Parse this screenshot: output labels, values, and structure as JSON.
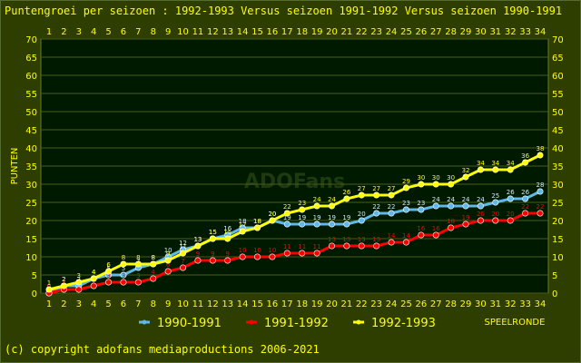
{
  "title": "Puntengroei per seizoen : 1992-1993 Versus seizoen 1991-1992 Versus seizoen 1990-1991",
  "copyright": "(c) copyright adofans mediaproductions 2006-2021",
  "watermark": "ADOFans",
  "colors": {
    "background": "#2e3d00",
    "plot_background": "#001a00",
    "grid": "#4a5a1a",
    "text": "#ffff00",
    "series_1990_1991": "#5fb8e8",
    "series_1991_1992": "#ff0000",
    "series_1992_1993": "#ffff00"
  },
  "chart_data": {
    "type": "line",
    "title": "Puntengroei per seizoen : 1992-1993 Versus seizoen 1991-1992 Versus seizoen 1990-1991",
    "ylabel": "PUNTEN",
    "xlabel": "SPEELRONDE",
    "x": [
      1,
      2,
      3,
      4,
      5,
      6,
      7,
      8,
      9,
      10,
      11,
      12,
      13,
      14,
      15,
      16,
      17,
      18,
      19,
      20,
      21,
      22,
      23,
      24,
      25,
      26,
      27,
      28,
      29,
      30,
      31,
      32,
      33,
      34
    ],
    "ylim": [
      0,
      70
    ],
    "yticks": [
      0,
      5,
      10,
      15,
      20,
      25,
      30,
      35,
      40,
      45,
      50,
      55,
      60,
      65,
      70
    ],
    "grid": true,
    "legend_position": "bottom",
    "series": [
      {
        "name": "1990-1991",
        "color": "#5fb8e8",
        "values": [
          0,
          2,
          2,
          4,
          5,
          5,
          7,
          8,
          10,
          12,
          13,
          15,
          16,
          18,
          18,
          20,
          19,
          19,
          19,
          19,
          19,
          20,
          22,
          22,
          23,
          23,
          24,
          24,
          24,
          24,
          25,
          26,
          26,
          28
        ]
      },
      {
        "name": "1991-1992",
        "color": "#ff0000",
        "values": [
          0,
          1,
          1,
          2,
          3,
          3,
          3,
          4,
          6,
          7,
          9,
          9,
          9,
          10,
          10,
          10,
          11,
          11,
          11,
          13,
          13,
          13,
          13,
          14,
          14,
          16,
          16,
          18,
          19,
          20,
          20,
          20,
          22,
          22
        ]
      },
      {
        "name": "1992-1993",
        "color": "#ffff00",
        "values": [
          1,
          2,
          3,
          4,
          6,
          8,
          8,
          8,
          9,
          11,
          13,
          15,
          15,
          17,
          18,
          20,
          22,
          23,
          24,
          24,
          26,
          27,
          27,
          27,
          29,
          30,
          30,
          30,
          32,
          34,
          34,
          34,
          36,
          38
        ]
      }
    ]
  }
}
